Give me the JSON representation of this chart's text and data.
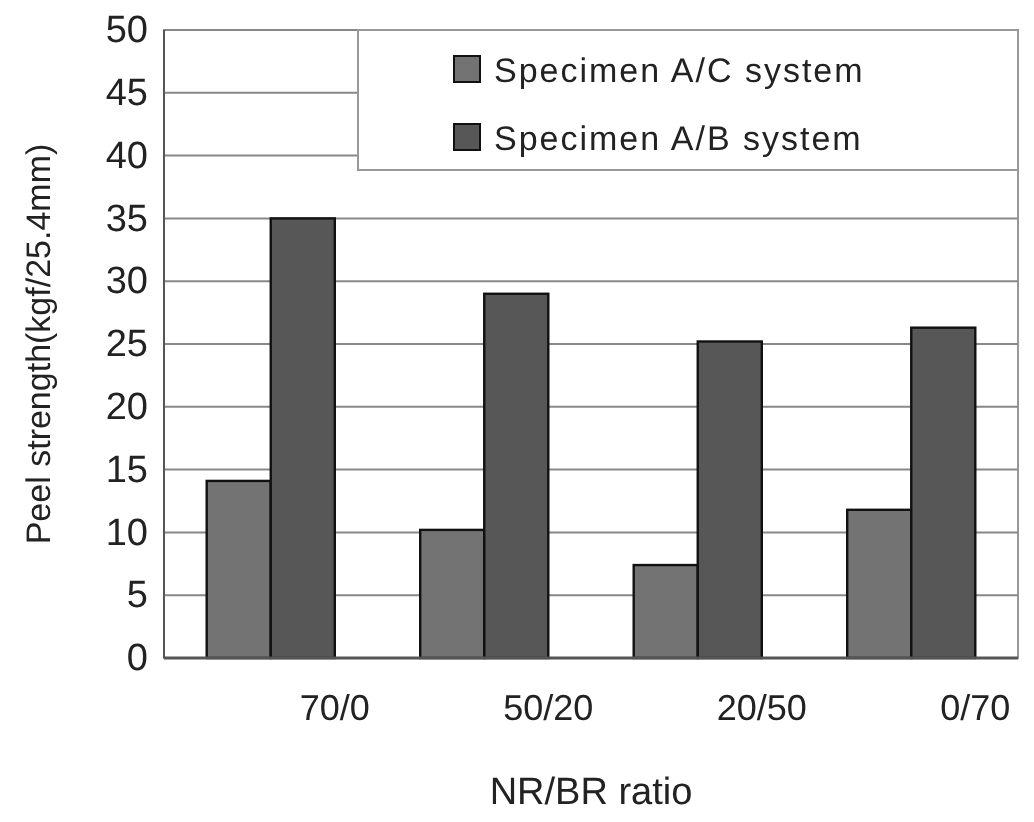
{
  "chart_data": {
    "type": "bar",
    "xlabel": "NR/BR ratio",
    "ylabel": "Peel strength(kgf/25.4mm)",
    "categories": [
      "70/0",
      "50/20",
      "20/50",
      "0/70"
    ],
    "series": [
      {
        "name": "Specimen A/C system",
        "color": "#737373",
        "values": [
          14.1,
          10.2,
          7.4,
          11.8
        ]
      },
      {
        "name": "Specimen A/B system",
        "color": "#575757",
        "values": [
          35.0,
          29.0,
          25.2,
          26.3
        ]
      }
    ],
    "ylim": [
      0,
      50
    ],
    "yticks": [
      0,
      5,
      10,
      15,
      20,
      25,
      30,
      35,
      40,
      45,
      50
    ],
    "grid": "y",
    "legend": "top right"
  }
}
